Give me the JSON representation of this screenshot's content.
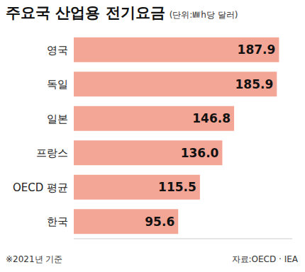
{
  "chart_data": {
    "type": "bar",
    "title": "주요국 산업용 전기요금",
    "subtitle": "(단위:㎿h당 달러)",
    "categories": [
      "영국",
      "독일",
      "일본",
      "프랑스",
      "OECD 평균",
      "한국"
    ],
    "values": [
      187.9,
      185.9,
      146.8,
      136.0,
      115.5,
      95.6
    ],
    "value_labels": [
      "187.9",
      "185.9",
      "146.8",
      "136.0",
      "115.5",
      "95.6"
    ],
    "color": "#f4a696",
    "orientation": "horizontal",
    "data_labels": true,
    "tick_labels": "y",
    "xlim": [
      0,
      200
    ],
    "grid": false,
    "annotations": [
      "※2021년 기준",
      "자료:OECD · IEA"
    ]
  }
}
